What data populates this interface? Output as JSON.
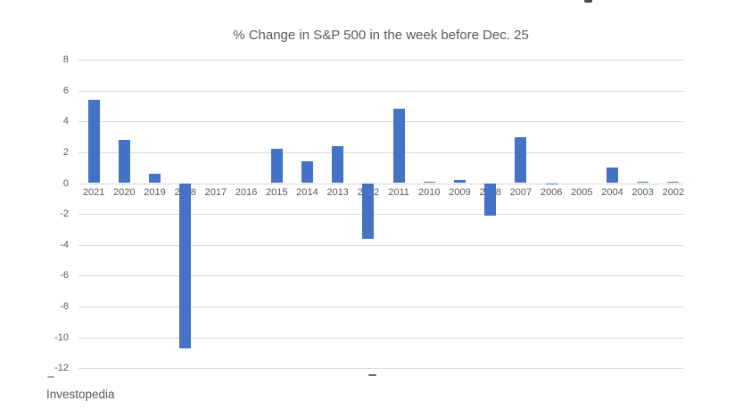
{
  "chart_data": {
    "type": "bar",
    "title": "% Change in S&P 500 in the week before Dec. 25",
    "categories": [
      "2021",
      "2020",
      "2019",
      "2018",
      "2017",
      "2016",
      "2015",
      "2014",
      "2013",
      "2012",
      "2011",
      "2010",
      "2009",
      "2008",
      "2007",
      "2006",
      "2005",
      "2004",
      "2003",
      "2002"
    ],
    "values": [
      5.4,
      2.8,
      0.6,
      -10.7,
      0,
      0,
      2.2,
      1.4,
      2.4,
      -3.6,
      4.8,
      0.1,
      0.2,
      -2.1,
      3.0,
      -0.1,
      0,
      1.0,
      0.1,
      0.1
    ],
    "xlabel": "",
    "ylabel": "",
    "ylim": [
      -12,
      8
    ],
    "yticks": [
      8,
      6,
      4,
      2,
      0,
      -2,
      -4,
      -6,
      -8,
      -10,
      -12
    ],
    "grid": true,
    "legend": false,
    "bar_color": "#4472C4",
    "gridline_color": "#D9D9D9",
    "tick_label_color": "#595959",
    "title_color": "#595959"
  },
  "source": {
    "label": "Investopedia"
  }
}
